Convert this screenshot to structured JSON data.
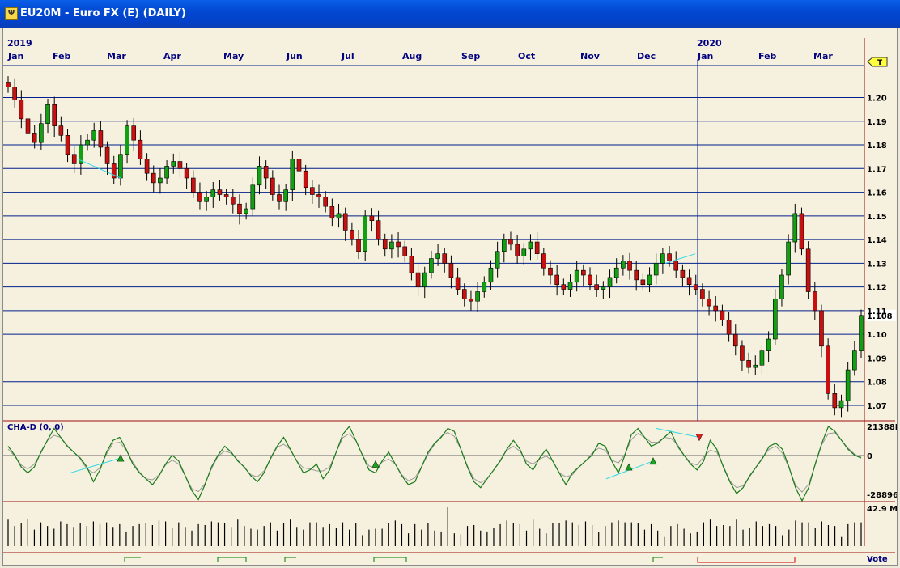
{
  "window": {
    "title": "EU20M - Euro FX (E) (DAILY)",
    "icon": "chart-app-icon"
  },
  "chart_data": {
    "type": "candlestick",
    "timeframe": "DAILY",
    "symbol": "EU20M",
    "instrument": "Euro FX (E)",
    "years": [
      "2019",
      "2020"
    ],
    "months": [
      "Jan",
      "Feb",
      "Mar",
      "Apr",
      "May",
      "Jun",
      "Jul",
      "Aug",
      "Sep",
      "Oct",
      "Nov",
      "Dec",
      "Jan",
      "Feb",
      "Mar"
    ],
    "price_ticks": [
      "1.20",
      "1.19",
      "1.18",
      "1.17",
      "1.16",
      "1.15",
      "1.14",
      "1.13",
      "1.12",
      "1.11",
      "1.10",
      "1.09",
      "1.08",
      "1.07"
    ],
    "current_price": "1.108",
    "current_price_num": 1.108,
    "ylim": [
      1.0635,
      1.2135
    ],
    "trend_marker": "T",
    "closes": [
      1.2045,
      1.199,
      1.191,
      1.185,
      1.181,
      1.189,
      1.197,
      1.188,
      1.184,
      1.176,
      1.172,
      1.18,
      1.182,
      1.186,
      1.179,
      1.172,
      1.166,
      1.176,
      1.188,
      1.182,
      1.174,
      1.168,
      1.164,
      1.166,
      1.171,
      1.173,
      1.17,
      1.166,
      1.16,
      1.156,
      1.158,
      1.161,
      1.159,
      1.158,
      1.155,
      1.151,
      1.153,
      1.163,
      1.171,
      1.166,
      1.159,
      1.156,
      1.161,
      1.174,
      1.169,
      1.162,
      1.159,
      1.158,
      1.154,
      1.149,
      1.151,
      1.144,
      1.14,
      1.135,
      1.15,
      1.148,
      1.14,
      1.136,
      1.139,
      1.137,
      1.133,
      1.126,
      1.12,
      1.126,
      1.132,
      1.134,
      1.13,
      1.124,
      1.119,
      1.115,
      1.114,
      1.118,
      1.122,
      1.128,
      1.135,
      1.14,
      1.138,
      1.133,
      1.136,
      1.139,
      1.134,
      1.128,
      1.125,
      1.121,
      1.119,
      1.122,
      1.127,
      1.125,
      1.121,
      1.119,
      1.12,
      1.124,
      1.128,
      1.131,
      1.127,
      1.123,
      1.121,
      1.125,
      1.13,
      1.134,
      1.131,
      1.127,
      1.124,
      1.121,
      1.119,
      1.115,
      1.112,
      1.11,
      1.106,
      1.1,
      1.095,
      1.089,
      1.086,
      1.087,
      1.093,
      1.098,
      1.115,
      1.125,
      1.139,
      1.151,
      1.136,
      1.118,
      1.11,
      1.095,
      1.075,
      1.069,
      1.072,
      1.085,
      1.093,
      1.108
    ],
    "cha_d": {
      "label": "CHA-D (0, 0)",
      "ticks": [
        "21388K",
        "0",
        "-28896K"
      ],
      "ylim": [
        -28896,
        21388
      ],
      "values": [
        8000,
        2000,
        -6000,
        -10000,
        -6000,
        4000,
        12000,
        20000,
        14000,
        8000,
        4000,
        0,
        -6000,
        -16000,
        -8000,
        4000,
        12000,
        14000,
        6000,
        -4000,
        -10000,
        -14000,
        -18000,
        -12000,
        -4000,
        2000,
        -2000,
        -12000,
        -22000,
        -28000,
        -18000,
        -6000,
        2000,
        8000,
        4000,
        -2000,
        -6000,
        -12000,
        -16000,
        -10000,
        0,
        8000,
        14000,
        6000,
        -2000,
        -10000,
        -8000,
        -4000,
        -14000,
        -8000,
        4000,
        16000,
        21388,
        12000,
        2000,
        -8000,
        -10000,
        -2000,
        4000,
        -4000,
        -12000,
        -18000,
        -16000,
        -6000,
        4000,
        10000,
        14000,
        20000,
        18000,
        6000,
        -6000,
        -16000,
        -20000,
        -14000,
        -8000,
        -2000,
        6000,
        12000,
        6000,
        -4000,
        -8000,
        0,
        6000,
        -2000,
        -10000,
        -18000,
        -10000,
        -6000,
        -2000,
        2000,
        10000,
        8000,
        -2000,
        -10000,
        2000,
        16000,
        20000,
        14000,
        8000,
        10000,
        14000,
        18000,
        8000,
        2000,
        -4000,
        -8000,
        -2000,
        12000,
        6000,
        -6000,
        -16000,
        -24000,
        -20000,
        -12000,
        -6000,
        0,
        8000,
        10000,
        6000,
        -6000,
        -20000,
        -28896,
        -20000,
        -4000,
        10000,
        21388,
        18000,
        12000,
        6000,
        2000,
        0
      ],
      "up_arrows": 5,
      "down_arrows": 1
    },
    "volume": {
      "label": "42.9 M",
      "ylim": [
        0,
        46
      ],
      "values": [
        29,
        22,
        25,
        30,
        18,
        26,
        22,
        19,
        27,
        24,
        21,
        25,
        22,
        27,
        24,
        26,
        21,
        24,
        16,
        22,
        24,
        25,
        23,
        28,
        27,
        20,
        26,
        21,
        17,
        24,
        23,
        27,
        26,
        25,
        21,
        29,
        22,
        19,
        18,
        22,
        26,
        17,
        25,
        29,
        21,
        18,
        26,
        26,
        21,
        24,
        20,
        26,
        18,
        25,
        12,
        18,
        19,
        19,
        25,
        28,
        24,
        14,
        24,
        18,
        25,
        17,
        16,
        43,
        14,
        13,
        22,
        23,
        17,
        16,
        20,
        24,
        28,
        25,
        24,
        17,
        29,
        19,
        14,
        25,
        25,
        28,
        26,
        23,
        27,
        23,
        15,
        22,
        26,
        28,
        26,
        26,
        25,
        18,
        24,
        17,
        10,
        22,
        24,
        19,
        14,
        16,
        26,
        29,
        22,
        23,
        22,
        29,
        18,
        20,
        27,
        22,
        24,
        22,
        12,
        18,
        28,
        26,
        26,
        20,
        27,
        23,
        22,
        10,
        24,
        26,
        26
      ]
    }
  },
  "footer": {
    "vote_label": "Vote"
  }
}
